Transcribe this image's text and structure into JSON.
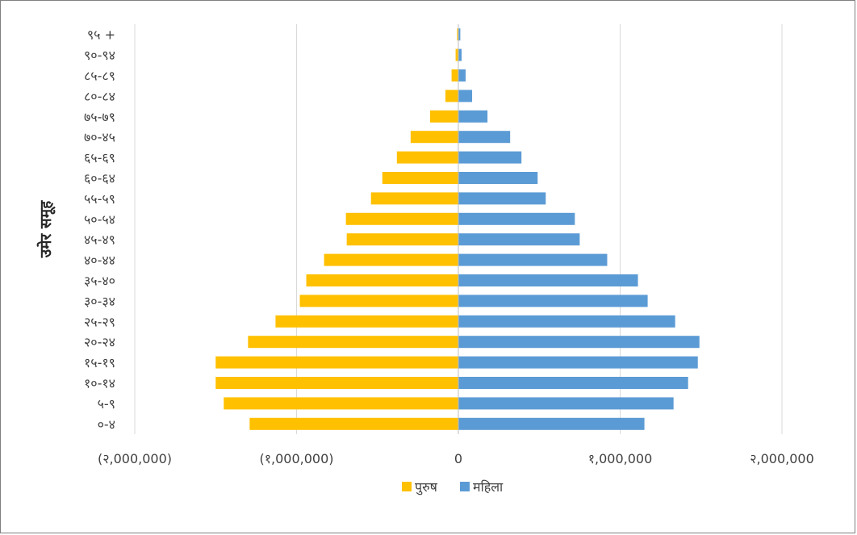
{
  "chart_data": {
    "type": "bar",
    "orientation": "horizontal",
    "stacked": "diverging",
    "ylabel": "उमेर समूह",
    "categories": [
      "०-४",
      "५-९",
      "१०-१४",
      "१५-१९",
      "२०-२४",
      "२५-२९",
      "३०-३४",
      "३५-४०",
      "४०-४४",
      "४५-४९",
      "५०-५४",
      "५५-५९",
      "६०-६४",
      "६५-६९",
      "७०-४५",
      "७५-७९",
      "८०-८४",
      "८५-८९",
      "९०-९४",
      "९५ +"
    ],
    "x_ticks": [
      "(२,000,000)",
      "(१,000,000)",
      "0",
      "१,000,000",
      "२,000,000"
    ],
    "xlim": [
      -2000000,
      2000000
    ],
    "grid": true,
    "legend_position": "bottom",
    "series": [
      {
        "name": "पुरुष",
        "color": "#FFC000",
        "values": [
          -1290000,
          -1450000,
          -1500000,
          -1500000,
          -1300000,
          -1130000,
          -980000,
          -940000,
          -830000,
          -690000,
          -695000,
          -540000,
          -470000,
          -380000,
          -295000,
          -175000,
          -80000,
          -42000,
          -17000,
          -8000
        ]
      },
      {
        "name": "महिला",
        "color": "#5B9BD5",
        "values": [
          1150000,
          1330000,
          1420000,
          1480000,
          1490000,
          1340000,
          1170000,
          1110000,
          920000,
          750000,
          720000,
          540000,
          490000,
          390000,
          320000,
          180000,
          85000,
          45000,
          20000,
          12000
        ]
      }
    ]
  }
}
